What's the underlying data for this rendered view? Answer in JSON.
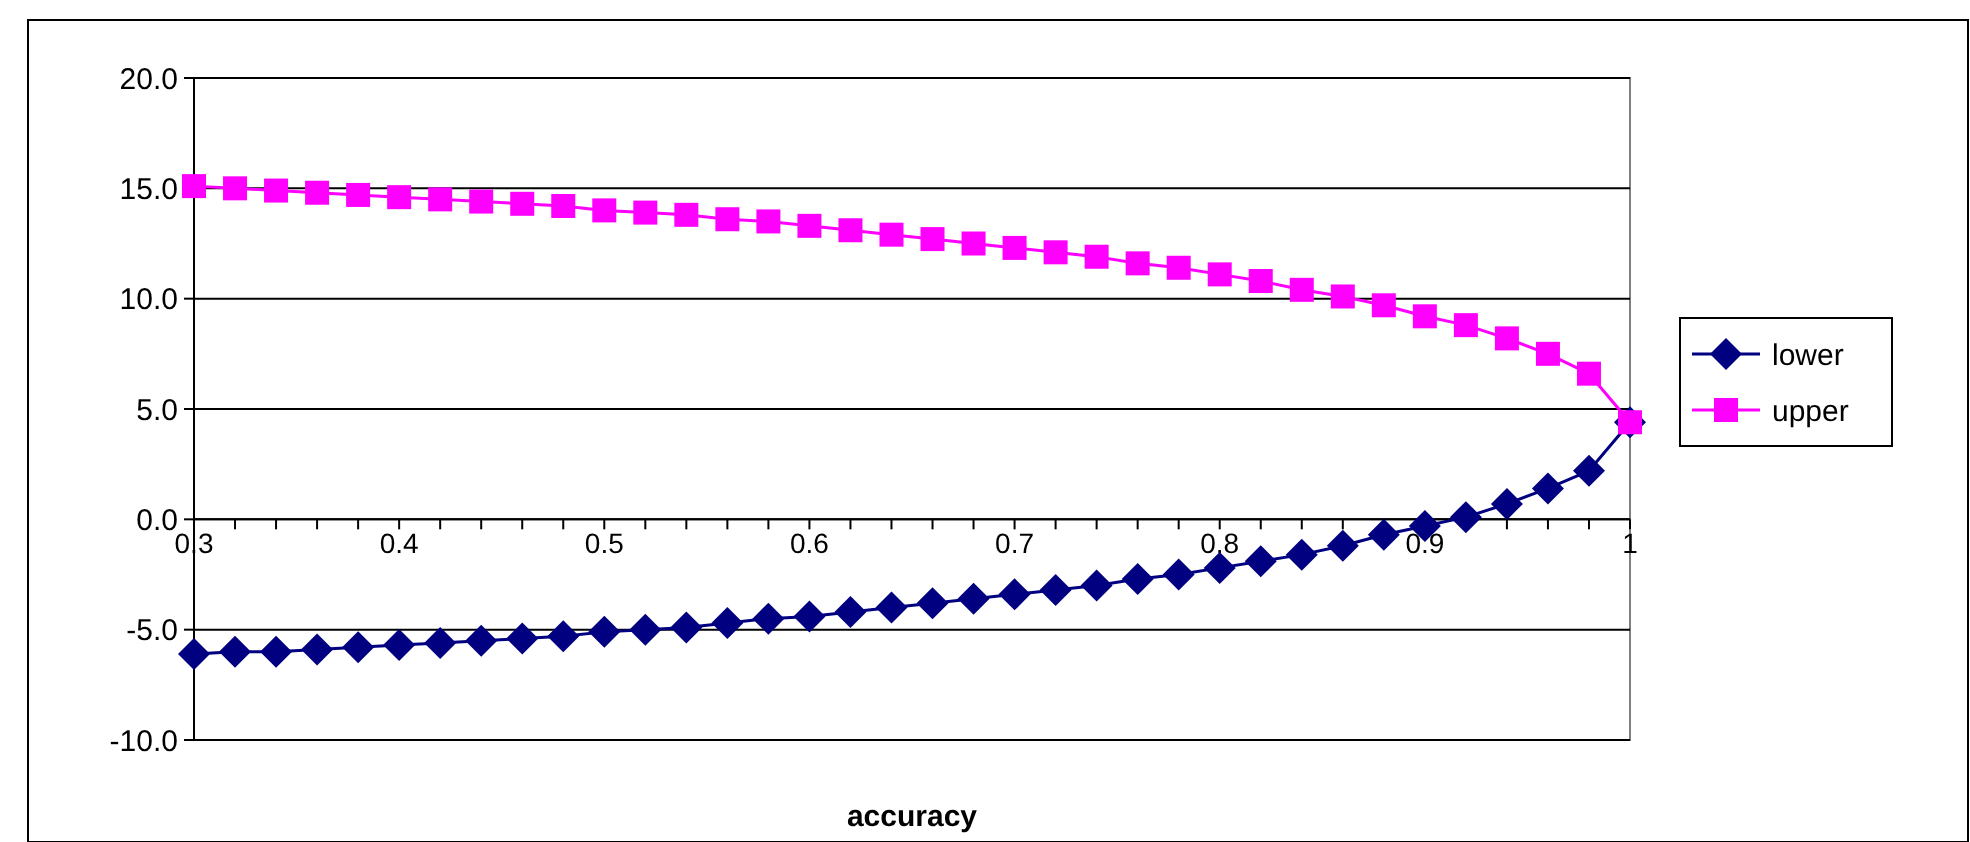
{
  "chart_data": {
    "type": "line",
    "xlabel": "accuracy",
    "x": [
      0.3,
      0.32,
      0.34,
      0.36,
      0.38,
      0.4,
      0.42,
      0.44,
      0.46,
      0.48,
      0.5,
      0.52,
      0.54,
      0.56,
      0.58,
      0.6,
      0.62,
      0.64,
      0.66,
      0.68,
      0.7,
      0.72,
      0.74,
      0.76,
      0.78,
      0.8,
      0.82,
      0.84,
      0.86,
      0.88,
      0.9,
      0.92,
      0.94,
      0.96,
      0.98,
      1.0
    ],
    "series": [
      {
        "name": "lower",
        "color": "#000080",
        "marker": "diamond",
        "values": [
          -6.1,
          -6.0,
          -6.0,
          -5.9,
          -5.8,
          -5.7,
          -5.6,
          -5.5,
          -5.4,
          -5.3,
          -5.1,
          -5.0,
          -4.9,
          -4.7,
          -4.5,
          -4.4,
          -4.2,
          -4.0,
          -3.8,
          -3.6,
          -3.4,
          -3.2,
          -3.0,
          -2.7,
          -2.5,
          -2.2,
          -1.9,
          -1.6,
          -1.2,
          -0.7,
          -0.3,
          0.1,
          0.7,
          1.4,
          2.2,
          4.4
        ]
      },
      {
        "name": "upper",
        "color": "#ff00ff",
        "marker": "square",
        "values": [
          15.1,
          15.0,
          14.9,
          14.8,
          14.7,
          14.6,
          14.5,
          14.4,
          14.3,
          14.2,
          14.0,
          13.9,
          13.8,
          13.6,
          13.5,
          13.3,
          13.1,
          12.9,
          12.7,
          12.5,
          12.3,
          12.1,
          11.9,
          11.6,
          11.4,
          11.1,
          10.8,
          10.4,
          10.1,
          9.7,
          9.2,
          8.8,
          8.2,
          7.5,
          6.6,
          4.4
        ]
      }
    ],
    "xlim": [
      0.3,
      1
    ],
    "xticks": [
      0.3,
      {
        "value": 0.32,
        "label": null
      },
      {
        "value": 0.34,
        "label": null
      },
      {
        "value": 0.36,
        "label": null
      },
      {
        "value": 0.38,
        "label": null
      },
      0.4,
      {
        "value": 0.42,
        "label": null
      },
      {
        "value": 0.44,
        "label": null
      },
      {
        "value": 0.46,
        "label": null
      },
      {
        "value": 0.48,
        "label": null
      },
      0.5,
      {
        "value": 0.52,
        "label": null
      },
      {
        "value": 0.54,
        "label": null
      },
      {
        "value": 0.56,
        "label": null
      },
      {
        "value": 0.58,
        "label": null
      },
      0.6,
      {
        "value": 0.62,
        "label": null
      },
      {
        "value": 0.64,
        "label": null
      },
      {
        "value": 0.66,
        "label": null
      },
      {
        "value": 0.68,
        "label": null
      },
      0.7,
      {
        "value": 0.72,
        "label": null
      },
      {
        "value": 0.74,
        "label": null
      },
      {
        "value": 0.76,
        "label": null
      },
      {
        "value": 0.78,
        "label": null
      },
      0.8,
      {
        "value": 0.82,
        "label": null
      },
      {
        "value": 0.84,
        "label": null
      },
      {
        "value": 0.86,
        "label": null
      },
      {
        "value": 0.88,
        "label": null
      },
      0.9,
      {
        "value": 0.92,
        "label": null
      },
      {
        "value": 0.94,
        "label": null
      },
      {
        "value": 0.96,
        "label": null
      },
      {
        "value": 0.98,
        "label": null
      },
      1
    ],
    "ylim": [
      -10,
      20
    ],
    "yticks": [
      {
        "value": -10,
        "label": "-10.0"
      },
      {
        "value": -5,
        "label": "-5.0"
      },
      {
        "value": 0,
        "label": "0.0"
      },
      {
        "value": 5,
        "label": "5.0"
      },
      {
        "value": 10,
        "label": "10.0"
      },
      {
        "value": 15,
        "label": "15.0"
      },
      {
        "value": 20,
        "label": "20.0"
      }
    ],
    "grid": "y",
    "legend": "right",
    "line_style": "solid"
  }
}
